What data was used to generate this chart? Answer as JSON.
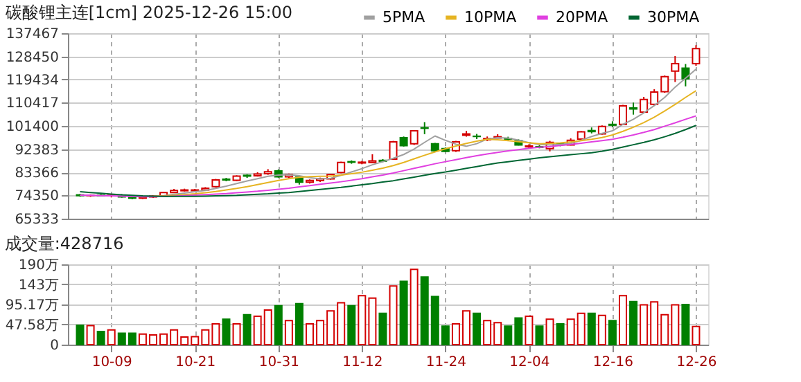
{
  "chart_data": [
    {
      "type": "candlestick",
      "title": "碳酸锂主连[1cm] 2025-12-26 15:00",
      "ohlc": [
        [
          74600,
          75000,
          73900,
          74300
        ],
        [
          74300,
          74800,
          73800,
          74500
        ],
        [
          74500,
          75000,
          74000,
          74200
        ],
        [
          74200,
          74700,
          73600,
          74400
        ],
        [
          74400,
          74900,
          73500,
          73800
        ],
        [
          73800,
          74200,
          72900,
          73300
        ],
        [
          73300,
          74000,
          73000,
          73800
        ],
        [
          73800,
          74400,
          73400,
          74100
        ],
        [
          74000,
          75600,
          73800,
          75500
        ],
        [
          75500,
          76900,
          75300,
          76300
        ],
        [
          76200,
          77000,
          75900,
          76500
        ],
        [
          76200,
          76900,
          75700,
          76500
        ],
        [
          76500,
          77600,
          76200,
          77200
        ],
        [
          77800,
          80800,
          77500,
          80400
        ],
        [
          80700,
          81200,
          79900,
          80400
        ],
        [
          80300,
          82200,
          80000,
          81900
        ],
        [
          82200,
          82600,
          81200,
          81900
        ],
        [
          82000,
          83400,
          81700,
          82700
        ],
        [
          82800,
          84600,
          82400,
          83600
        ],
        [
          83900,
          84500,
          81300,
          81600
        ],
        [
          81600,
          82900,
          81100,
          82500
        ],
        [
          81500,
          81800,
          78600,
          79500
        ],
        [
          79500,
          80600,
          79000,
          80200
        ],
        [
          80200,
          81300,
          79600,
          80900
        ],
        [
          80800,
          82700,
          80500,
          82500
        ],
        [
          83300,
          87500,
          83000,
          87200
        ],
        [
          87500,
          88000,
          86700,
          87300
        ],
        [
          87000,
          87800,
          86500,
          87300
        ],
        [
          87200,
          90400,
          86900,
          87800
        ],
        [
          88000,
          88500,
          87300,
          87700
        ],
        [
          88500,
          95600,
          88300,
          95200
        ],
        [
          96800,
          97300,
          93400,
          93700
        ],
        [
          94500,
          99800,
          94000,
          99500
        ],
        [
          100700,
          102900,
          98200,
          100500
        ],
        [
          94500,
          94800,
          91500,
          91800
        ],
        [
          92600,
          93000,
          91200,
          91500
        ],
        [
          91800,
          95600,
          91300,
          95200
        ],
        [
          97800,
          99500,
          97200,
          98300
        ],
        [
          97400,
          98300,
          96300,
          97300
        ],
        [
          96000,
          97300,
          95500,
          96500
        ],
        [
          96700,
          98200,
          96600,
          97200
        ],
        [
          96500,
          97200,
          95600,
          96300
        ],
        [
          95700,
          96200,
          93800,
          94000
        ],
        [
          93300,
          94300,
          92800,
          93600
        ],
        [
          93300,
          93900,
          92700,
          93100
        ],
        [
          92600,
          95600,
          91500,
          95000
        ],
        [
          94500,
          94800,
          93500,
          94100
        ],
        [
          94000,
          96600,
          93800,
          95800
        ],
        [
          96300,
          99400,
          95900,
          99100
        ],
        [
          99600,
          100800,
          98500,
          99200
        ],
        [
          98300,
          101600,
          98000,
          101200
        ],
        [
          102000,
          103200,
          101000,
          101700
        ],
        [
          102000,
          109600,
          101700,
          109200
        ],
        [
          108400,
          110500,
          105800,
          108000
        ],
        [
          106800,
          112700,
          106400,
          111700
        ],
        [
          109800,
          115700,
          109300,
          114600
        ],
        [
          114700,
          121000,
          114300,
          120600
        ],
        [
          122700,
          128600,
          118500,
          125600
        ],
        [
          123900,
          125500,
          116800,
          119800
        ],
        [
          125600,
          132800,
          124800,
          131500
        ]
      ],
      "colors": [
        "#008000",
        "#d40000",
        "#008000",
        "#d40000",
        "#008000",
        "#008000",
        "#d40000",
        "#d40000",
        "#d40000",
        "#d40000",
        "#d40000",
        "#d40000",
        "#d40000",
        "#d40000",
        "#008000",
        "#d40000",
        "#008000",
        "#d40000",
        "#d40000",
        "#008000",
        "#d40000",
        "#008000",
        "#d40000",
        "#d40000",
        "#d40000",
        "#d40000",
        "#008000",
        "#d40000",
        "#d40000",
        "#008000",
        "#d40000",
        "#008000",
        "#d40000",
        "#008000",
        "#008000",
        "#008000",
        "#d40000",
        "#d40000",
        "#008000",
        "#d40000",
        "#d40000",
        "#008000",
        "#008000",
        "#d40000",
        "#008000",
        "#d40000",
        "#008000",
        "#d40000",
        "#d40000",
        "#008000",
        "#d40000",
        "#008000",
        "#d40000",
        "#008000",
        "#d40000",
        "#d40000",
        "#d40000",
        "#d40000",
        "#008000",
        "#d40000"
      ],
      "series": [
        {
          "name": "5PMA",
          "type": "line",
          "color": "#a0a0a0",
          "values": [
            74500,
            74400,
            74300,
            74300,
            74200,
            74000,
            73900,
            74000,
            74300,
            74800,
            75300,
            75800,
            76300,
            77100,
            78000,
            79000,
            80000,
            80900,
            81800,
            82300,
            82400,
            82000,
            81300,
            80800,
            81000,
            82200,
            83500,
            84800,
            86300,
            87500,
            88800,
            90300,
            92400,
            95000,
            97500,
            95800,
            94300,
            93500,
            94500,
            96300,
            96800,
            96700,
            95900,
            94900,
            94200,
            94000,
            94200,
            94600,
            95800,
            97300,
            98500,
            99500,
            102000,
            104000,
            106500,
            109300,
            112500,
            116500,
            120000,
            123500
          ]
        },
        {
          "name": "10PMA",
          "type": "line",
          "color": "#e6b422",
          "values": [
            null,
            null,
            null,
            null,
            null,
            null,
            null,
            74000,
            74200,
            74400,
            74700,
            75000,
            75400,
            75900,
            76500,
            77100,
            77800,
            78600,
            79400,
            80200,
            80900,
            81400,
            81700,
            81800,
            81900,
            82300,
            82800,
            83400,
            84200,
            85000,
            86000,
            87200,
            88600,
            90000,
            91300,
            92500,
            93600,
            94600,
            95500,
            96200,
            96000,
            95700,
            95300,
            94900,
            94500,
            94600,
            94800,
            95200,
            95700,
            96200,
            96900,
            97900,
            99300,
            100900,
            102700,
            104800,
            107200,
            109800,
            112500,
            115100
          ]
        },
        {
          "name": "20PMA",
          "type": "line",
          "color": "#e040e0",
          "values": [
            74500,
            74400,
            74300,
            74200,
            74100,
            74000,
            73900,
            73900,
            74000,
            74100,
            74300,
            74500,
            74700,
            74900,
            75100,
            75400,
            75700,
            76000,
            76400,
            76800,
            77200,
            77700,
            78200,
            78700,
            79200,
            79700,
            80300,
            80900,
            81600,
            82300,
            83100,
            84000,
            84900,
            85800,
            86700,
            87500,
            88300,
            89100,
            89800,
            90500,
            91100,
            91700,
            92200,
            92700,
            93100,
            93400,
            93800,
            94200,
            94700,
            95200,
            95700,
            96200,
            97000,
            97900,
            98900,
            100000,
            101300,
            102600,
            104000,
            105300
          ]
        },
        {
          "name": "30PMA",
          "type": "line",
          "color": "#006633",
          "values": [
            75800,
            75500,
            75200,
            74900,
            74600,
            74400,
            74200,
            74100,
            74000,
            74000,
            74000,
            74000,
            74100,
            74200,
            74300,
            74400,
            74600,
            74800,
            75000,
            75300,
            75500,
            75900,
            76300,
            76700,
            77100,
            77500,
            78000,
            78500,
            79000,
            79600,
            80100,
            80800,
            81500,
            82200,
            82900,
            83500,
            84200,
            84900,
            85600,
            86300,
            87000,
            87500,
            88000,
            88500,
            89000,
            89400,
            89800,
            90200,
            90600,
            91000,
            91600,
            92300,
            93200,
            94100,
            95000,
            96000,
            97200,
            98500,
            100000,
            101600
          ]
        }
      ],
      "ylim": [
        65333,
        137467
      ],
      "yticks": [
        65333,
        74350,
        83366,
        92383,
        101400,
        110417,
        119434,
        128450,
        137467
      ],
      "grid": true,
      "legend": "top right",
      "tick_labels": "y"
    },
    {
      "type": "bar",
      "title": "成交量:428716",
      "categories": [
        null,
        null,
        null,
        "10-09",
        null,
        null,
        null,
        null,
        null,
        null,
        null,
        "10-21",
        null,
        null,
        null,
        null,
        null,
        null,
        null,
        "10-31",
        null,
        null,
        null,
        null,
        null,
        null,
        null,
        "11-12",
        null,
        null,
        null,
        null,
        null,
        null,
        null,
        "11-24",
        null,
        null,
        null,
        null,
        null,
        null,
        null,
        "12-04",
        null,
        null,
        null,
        null,
        null,
        null,
        null,
        "12-16",
        null,
        null,
        null,
        null,
        null,
        null,
        null,
        "12-26"
      ],
      "values": [
        46,
        45,
        31,
        35,
        27,
        27,
        25,
        23,
        25,
        35,
        18,
        19,
        35,
        49,
        60,
        49,
        71,
        67,
        82,
        92,
        57,
        97,
        49,
        57,
        80,
        99,
        92,
        116,
        110,
        74,
        139,
        150,
        178,
        160,
        114,
        44,
        49,
        80,
        74,
        57,
        52,
        44,
        63,
        67,
        44,
        60,
        49,
        60,
        74,
        74,
        69,
        57,
        116,
        102,
        94,
        101,
        71,
        94,
        95,
        43
      ],
      "colors": [
        "#008000",
        "#d40000",
        "#008000",
        "#d40000",
        "#008000",
        "#008000",
        "#d40000",
        "#d40000",
        "#d40000",
        "#d40000",
        "#d40000",
        "#d40000",
        "#d40000",
        "#d40000",
        "#008000",
        "#d40000",
        "#008000",
        "#d40000",
        "#d40000",
        "#008000",
        "#d40000",
        "#008000",
        "#d40000",
        "#d40000",
        "#d40000",
        "#d40000",
        "#008000",
        "#d40000",
        "#d40000",
        "#008000",
        "#d40000",
        "#008000",
        "#d40000",
        "#008000",
        "#008000",
        "#008000",
        "#d40000",
        "#d40000",
        "#008000",
        "#d40000",
        "#d40000",
        "#008000",
        "#008000",
        "#d40000",
        "#008000",
        "#d40000",
        "#008000",
        "#d40000",
        "#d40000",
        "#008000",
        "#d40000",
        "#008000",
        "#d40000",
        "#008000",
        "#d40000",
        "#d40000",
        "#d40000",
        "#d40000",
        "#008000",
        "#d40000"
      ],
      "ylim": [
        0,
        190
      ],
      "yticks": [
        0,
        {
          "value": 47.58,
          "label": "47.58万"
        },
        {
          "value": 95.17,
          "label": "95.17万"
        },
        {
          "value": 143,
          "label": "143万"
        },
        {
          "value": 190,
          "label": "190万"
        }
      ],
      "grid": true
    }
  ]
}
